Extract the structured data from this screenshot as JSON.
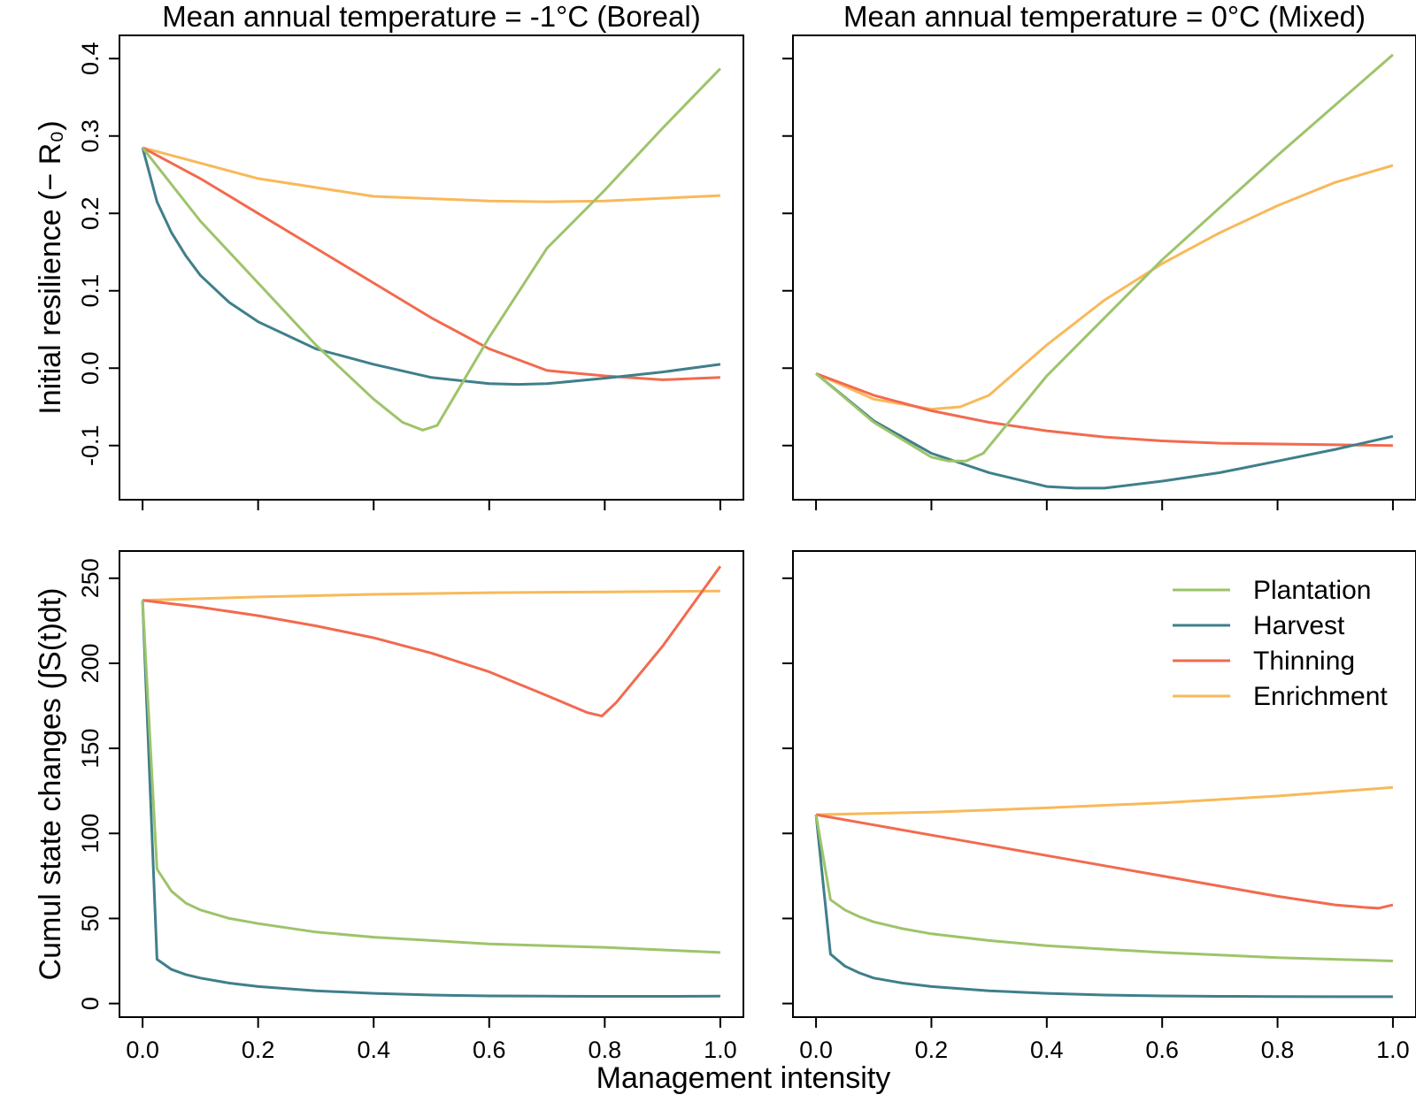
{
  "figure": {
    "xlabel": "Management intensity",
    "colors": {
      "Plantation": "#9dc46a",
      "Harvest": "#3f7f8b",
      "Thinning": "#f26a4f",
      "Enrichment": "#f8b95a"
    },
    "legend": {
      "placement": "top-right of bottom-right panel",
      "entries": [
        "Plantation",
        "Harvest",
        "Thinning",
        "Enrichment"
      ]
    }
  },
  "chart_data": [
    {
      "id": "boreal-resilience",
      "type": "line",
      "title": "Mean annual temperature = -1°C (Boreal)",
      "xlabel": "",
      "ylabel": "Initial resilience (− R₀)",
      "ylim": [
        -0.17,
        0.43
      ],
      "xlim": [
        -0.04,
        1.04
      ],
      "yticks": [
        -0.1,
        0.0,
        0.1,
        0.2,
        0.3,
        0.4
      ],
      "ytick_labels": [
        "-0.1",
        "0.0",
        "0.1",
        "0.2",
        "0.3",
        "0.4"
      ],
      "xticks": [
        0,
        0.2,
        0.4,
        0.6,
        0.8,
        1.0
      ],
      "xtick_labels": [],
      "grid": false,
      "series": [
        {
          "name": "Plantation",
          "x": [
            0,
            0.1,
            0.2,
            0.3,
            0.4,
            0.45,
            0.485,
            0.51,
            0.6,
            0.7,
            0.8,
            0.9,
            1.0
          ],
          "values": [
            0.285,
            0.19,
            0.11,
            0.03,
            -0.04,
            -0.07,
            -0.08,
            -0.074,
            0.04,
            0.155,
            0.23,
            0.31,
            0.387
          ]
        },
        {
          "name": "Harvest",
          "x": [
            0,
            0.025,
            0.05,
            0.075,
            0.1,
            0.15,
            0.2,
            0.3,
            0.4,
            0.5,
            0.6,
            0.65,
            0.7,
            0.8,
            0.9,
            1.0
          ],
          "values": [
            0.285,
            0.215,
            0.175,
            0.145,
            0.12,
            0.085,
            0.06,
            0.025,
            0.005,
            -0.012,
            -0.02,
            -0.021,
            -0.02,
            -0.013,
            -0.005,
            0.005
          ]
        },
        {
          "name": "Thinning",
          "x": [
            0,
            0.1,
            0.2,
            0.3,
            0.4,
            0.5,
            0.6,
            0.7,
            0.8,
            0.9,
            1.0
          ],
          "values": [
            0.285,
            0.245,
            0.2,
            0.155,
            0.11,
            0.065,
            0.025,
            -0.003,
            -0.01,
            -0.015,
            -0.012
          ]
        },
        {
          "name": "Enrichment",
          "x": [
            0,
            0.2,
            0.4,
            0.6,
            0.7,
            0.8,
            1.0
          ],
          "values": [
            0.285,
            0.245,
            0.222,
            0.216,
            0.215,
            0.216,
            0.223
          ]
        }
      ]
    },
    {
      "id": "mixed-resilience",
      "type": "line",
      "title": "Mean annual temperature = 0°C (Mixed)",
      "xlabel": "",
      "ylabel": "",
      "ylim": [
        -0.17,
        0.43
      ],
      "xlim": [
        -0.04,
        1.04
      ],
      "yticks": [
        -0.1,
        0.0,
        0.1,
        0.2,
        0.3,
        0.4
      ],
      "ytick_labels": [],
      "xticks": [
        0,
        0.2,
        0.4,
        0.6,
        0.8,
        1.0
      ],
      "xtick_labels": [],
      "grid": false,
      "series": [
        {
          "name": "Plantation",
          "x": [
            0,
            0.1,
            0.2,
            0.23,
            0.26,
            0.29,
            0.4,
            0.6,
            0.8,
            1.0
          ],
          "values": [
            -0.007,
            -0.07,
            -0.115,
            -0.12,
            -0.12,
            -0.11,
            -0.01,
            0.14,
            0.275,
            0.405
          ]
        },
        {
          "name": "Harvest",
          "x": [
            0,
            0.1,
            0.2,
            0.3,
            0.4,
            0.45,
            0.5,
            0.6,
            0.7,
            0.8,
            0.9,
            1.0
          ],
          "values": [
            -0.007,
            -0.068,
            -0.11,
            -0.135,
            -0.153,
            -0.155,
            -0.155,
            -0.146,
            -0.135,
            -0.12,
            -0.105,
            -0.088
          ]
        },
        {
          "name": "Thinning",
          "x": [
            0,
            0.1,
            0.2,
            0.3,
            0.4,
            0.5,
            0.6,
            0.7,
            0.8,
            0.9,
            1.0
          ],
          "values": [
            -0.007,
            -0.035,
            -0.055,
            -0.07,
            -0.081,
            -0.089,
            -0.094,
            -0.097,
            -0.098,
            -0.099,
            -0.1
          ]
        },
        {
          "name": "Enrichment",
          "x": [
            0,
            0.1,
            0.2,
            0.25,
            0.3,
            0.4,
            0.5,
            0.6,
            0.7,
            0.8,
            0.9,
            1.0
          ],
          "values": [
            -0.007,
            -0.04,
            -0.053,
            -0.05,
            -0.035,
            0.03,
            0.088,
            0.135,
            0.175,
            0.21,
            0.24,
            0.262
          ]
        }
      ]
    },
    {
      "id": "boreal-cumul",
      "type": "line",
      "title": "",
      "xlabel": "",
      "ylabel": "Cumul state changes (∫S(t)dt)",
      "ylim": [
        -8,
        266
      ],
      "xlim": [
        -0.04,
        1.04
      ],
      "yticks": [
        0,
        50,
        100,
        150,
        200,
        250
      ],
      "ytick_labels": [
        "0",
        "50",
        "100",
        "150",
        "200",
        "250"
      ],
      "xticks": [
        0,
        0.2,
        0.4,
        0.6,
        0.8,
        1.0
      ],
      "xtick_labels": [
        "0.0",
        "0.2",
        "0.4",
        "0.6",
        "0.8",
        "1.0"
      ],
      "grid": false,
      "series": [
        {
          "name": "Plantation",
          "x": [
            0,
            0.025,
            0.05,
            0.075,
            0.1,
            0.15,
            0.2,
            0.3,
            0.4,
            0.5,
            0.6,
            0.7,
            0.8,
            0.9,
            1.0
          ],
          "values": [
            237,
            79,
            66,
            59,
            55,
            50,
            47,
            42,
            39,
            37,
            35,
            34,
            33,
            31.5,
            30
          ]
        },
        {
          "name": "Harvest",
          "x": [
            0,
            0.025,
            0.05,
            0.075,
            0.1,
            0.15,
            0.2,
            0.3,
            0.4,
            0.5,
            0.6,
            0.7,
            0.8,
            0.9,
            1.0
          ],
          "values": [
            237,
            26,
            20,
            17,
            15,
            12,
            10,
            7.5,
            6,
            5,
            4.5,
            4.3,
            4.2,
            4.2,
            4.3
          ]
        },
        {
          "name": "Thinning",
          "x": [
            0,
            0.1,
            0.2,
            0.3,
            0.4,
            0.5,
            0.6,
            0.7,
            0.77,
            0.795,
            0.82,
            0.9,
            1.0
          ],
          "values": [
            237,
            233,
            228,
            222,
            215,
            206,
            195,
            181,
            171,
            169,
            177,
            210,
            257
          ]
        },
        {
          "name": "Enrichment",
          "x": [
            0,
            0.2,
            0.4,
            0.6,
            0.8,
            1.0
          ],
          "values": [
            237,
            239,
            240.5,
            241.5,
            242,
            242.5
          ]
        }
      ]
    },
    {
      "id": "mixed-cumul",
      "type": "line",
      "title": "",
      "xlabel": "",
      "ylabel": "",
      "ylim": [
        -8,
        266
      ],
      "xlim": [
        -0.04,
        1.04
      ],
      "yticks": [
        0,
        50,
        100,
        150,
        200,
        250
      ],
      "ytick_labels": [],
      "xticks": [
        0,
        0.2,
        0.4,
        0.6,
        0.8,
        1.0
      ],
      "xtick_labels": [
        "0.0",
        "0.2",
        "0.4",
        "0.6",
        "0.8",
        "1.0"
      ],
      "grid": false,
      "series": [
        {
          "name": "Plantation",
          "x": [
            0,
            0.025,
            0.05,
            0.075,
            0.1,
            0.15,
            0.2,
            0.3,
            0.4,
            0.5,
            0.6,
            0.7,
            0.8,
            0.9,
            1.0
          ],
          "values": [
            111,
            61,
            55,
            51,
            48,
            44,
            41,
            37,
            34,
            32,
            30,
            28.5,
            27,
            26,
            25
          ]
        },
        {
          "name": "Harvest",
          "x": [
            0,
            0.025,
            0.05,
            0.075,
            0.1,
            0.15,
            0.2,
            0.3,
            0.4,
            0.5,
            0.6,
            0.7,
            0.8,
            0.9,
            1.0
          ],
          "values": [
            111,
            29,
            22,
            18,
            15,
            12,
            10,
            7.5,
            6,
            5,
            4.5,
            4.2,
            4.1,
            4.0,
            4.0
          ]
        },
        {
          "name": "Thinning",
          "x": [
            0,
            0.1,
            0.2,
            0.3,
            0.4,
            0.5,
            0.6,
            0.7,
            0.8,
            0.9,
            0.95,
            0.975,
            1.0
          ],
          "values": [
            111,
            105,
            99,
            93,
            87,
            81,
            75,
            69,
            63,
            58,
            56.5,
            56,
            58
          ]
        },
        {
          "name": "Enrichment",
          "x": [
            0,
            0.2,
            0.4,
            0.6,
            0.8,
            1.0
          ],
          "values": [
            111,
            112.5,
            115,
            118,
            122,
            127
          ]
        }
      ]
    }
  ]
}
